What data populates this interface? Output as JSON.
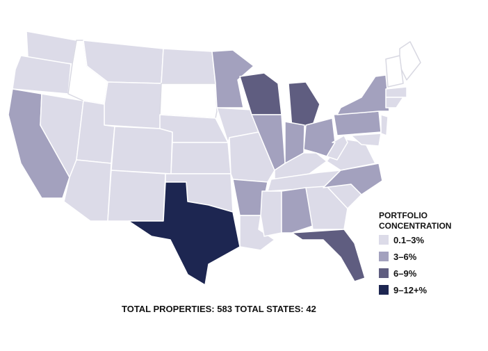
{
  "legend": {
    "title": "PORTFOLIO CONCENTRATION",
    "items": [
      {
        "label": "0.1–3%",
        "color": "#dcdbe8"
      },
      {
        "label": "3–6%",
        "color": "#a3a1be"
      },
      {
        "label": "6–9%",
        "color": "#5f5d80"
      },
      {
        "label": "9–12+%",
        "color": "#1d2651"
      }
    ]
  },
  "footer": {
    "properties": "TOTAL PROPERTIES: 583",
    "states": "TOTAL STATES: 42"
  }
}
